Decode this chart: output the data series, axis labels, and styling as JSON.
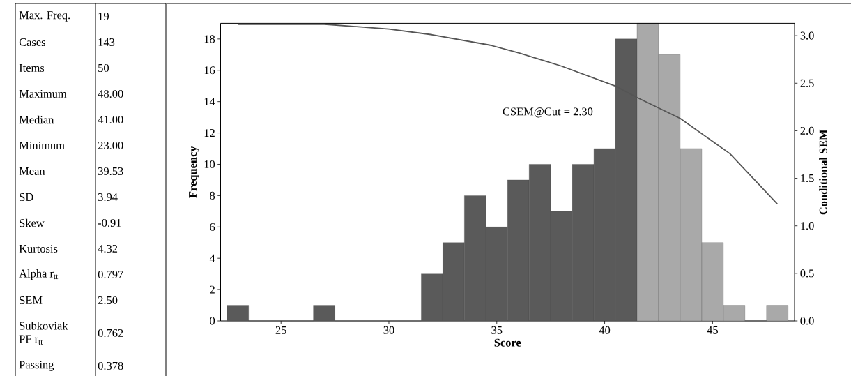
{
  "chart_data": [
    {
      "type": "other",
      "categories": [
        "Max. Freq.",
        "Cases",
        "Items",
        "Maximum",
        "Median",
        "Minimum",
        "Mean",
        "SD",
        "Skew",
        "Kurtosis",
        "Alpha r$_{tt}$",
        "SEM",
        "Subkoviak PF r$_{tt}$",
        "Passing"
      ],
      "value_labels": [
        "19",
        "143",
        "50",
        "48.00",
        "41.00",
        "23.00",
        "39.53",
        "3.94",
        "-0.91",
        "4.32",
        "0.797",
        "2.50",
        "0.762",
        "0.378"
      ]
    },
    {
      "type": "histogram",
      "xlabel": "Score",
      "ylabel": "Frequency",
      "y2label": "Conditional SEM",
      "bins": [
        22.5,
        23.5,
        24.5,
        25.5,
        26.5,
        27.5,
        28.5,
        29.5,
        30.5,
        31.5,
        32.5,
        33.5,
        34.5,
        35.5,
        36.5,
        37.5,
        38.5,
        39.5,
        40.5,
        41.5,
        42.5,
        43.5,
        44.5,
        45.5,
        46.5,
        47.5,
        48.5
      ],
      "values": [
        1,
        0,
        0,
        0,
        1,
        0,
        0,
        0,
        0,
        3,
        5,
        8,
        6,
        9,
        10,
        7,
        10,
        11,
        18,
        19,
        17,
        11,
        5,
        1,
        0,
        1
      ],
      "colors": [
        "#5a5a5a",
        "#5a5a5a",
        "#5a5a5a",
        "#5a5a5a",
        "#5a5a5a",
        "#5a5a5a",
        "#5a5a5a",
        "#5a5a5a",
        "#5a5a5a",
        "#5a5a5a",
        "#5a5a5a",
        "#5a5a5a",
        "#5a5a5a",
        "#5a5a5a",
        "#5a5a5a",
        "#5a5a5a",
        "#5a5a5a",
        "#5a5a5a",
        "#5a5a5a",
        "#a9a9a9",
        "#a9a9a9",
        "#a9a9a9",
        "#a9a9a9",
        "#a9a9a9",
        "#a9a9a9",
        "#a9a9a9"
      ],
      "series": [
        {
          "type": "line",
          "axis": "y2",
          "color": "#555555",
          "x": [
            23,
            27,
            30,
            32,
            34.7,
            36,
            38,
            40.5,
            41.5,
            43.5,
            45.8,
            48
          ],
          "values": [
            3.12,
            3.12,
            3.07,
            3.01,
            2.9,
            2.82,
            2.68,
            2.47,
            2.35,
            2.13,
            1.76,
            1.23
          ]
        }
      ],
      "annotations": [
        "CSEM@Cut = 2.30"
      ],
      "xlim": [
        22.2,
        48.8
      ],
      "xticks": [
        25,
        30,
        35,
        40,
        45
      ],
      "ylim": [
        0,
        19
      ],
      "yticks": [
        0,
        2,
        4,
        6,
        8,
        10,
        12,
        14,
        16,
        18
      ],
      "y2lim": [
        0,
        3.13
      ],
      "y2ticks": [
        {
          "value": 0,
          "label": "0.0"
        },
        {
          "value": 0.5,
          "label": "0.5"
        },
        {
          "value": 1,
          "label": "1.0"
        },
        {
          "value": 1.5,
          "label": "1.5"
        },
        {
          "value": 2,
          "label": "2.0"
        },
        {
          "value": 2.5,
          "label": "2.5"
        },
        {
          "value": 3,
          "label": "3.0"
        }
      ]
    }
  ]
}
